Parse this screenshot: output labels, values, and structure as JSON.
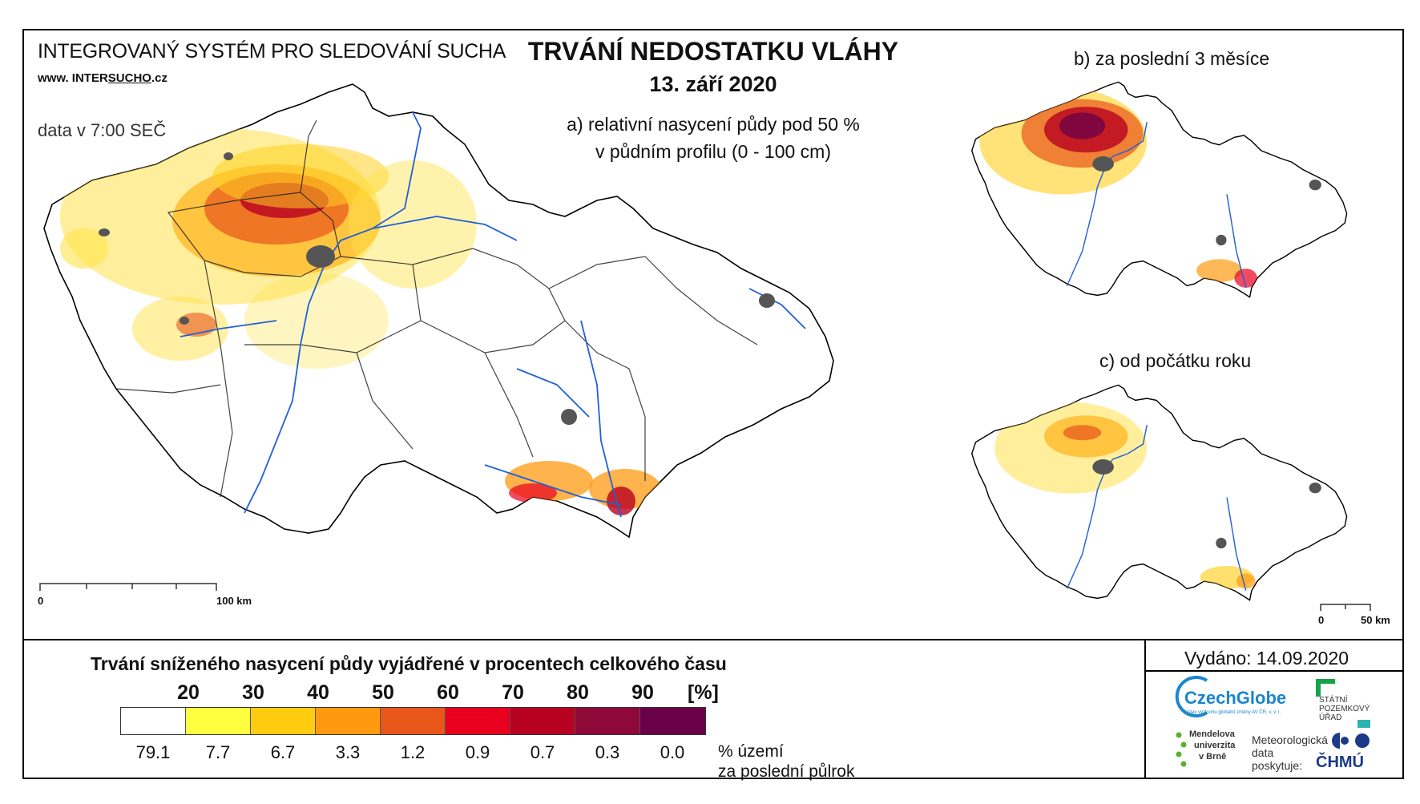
{
  "header": {
    "system_title": "INTEGROVANÝ SYSTÉM PRO SLEDOVÁNÍ SUCHA",
    "website_prefix": "www. INTER",
    "website_underlined": "SUCHO",
    "website_suffix": ".cz",
    "data_time": "data v 7:00 SEČ",
    "main_title": "TRVÁNÍ NEDOSTATKU VLÁHY",
    "date": "13. září 2020"
  },
  "panels": {
    "a_line1": "a) relativní nasycení půdy pod 50 %",
    "a_line2": "v půdním profilu (0 - 100 cm)",
    "b": "b) za poslední 3 měsíce",
    "c": "c) od počátku roku"
  },
  "scale": {
    "main_zero": "0",
    "main_label": "100 km",
    "small_zero": "0",
    "small_label": "50 km"
  },
  "legend": {
    "title": "Trvání sníženého nasycení půdy vyjádřené v procentech celkového času",
    "thresholds": [
      "20",
      "30",
      "40",
      "50",
      "60",
      "70",
      "80",
      "90"
    ],
    "unit": "[%]",
    "colors": [
      "#ffffff",
      "#ffff40",
      "#ffcc10",
      "#ff9a10",
      "#e8561a",
      "#e8001e",
      "#b80020",
      "#8e0838",
      "#6a0048"
    ],
    "percentages": [
      "79.1",
      "7.7",
      "6.7",
      "3.3",
      "1.2",
      "0.9",
      "0.7",
      "0.3",
      "0.0"
    ],
    "pct_label_line1": "% území",
    "pct_label_line2": "za poslední půlrok"
  },
  "footer": {
    "issued": "Vydáno: 14.09.2020",
    "czechglobe": "CzechGlobe",
    "czechglobe_sub": "Ústav výzkumu globální změny AV ČR, v. v. i.",
    "spu_line1": "STÁTNÍ",
    "spu_line2": "POZEMKOVÝ",
    "spu_line3": "ÚŘAD",
    "mendel_line1": "Mendelova",
    "mendel_line2": "univerzita",
    "mendel_line3": "v Brně",
    "meteo_line1": "Meteorologická",
    "meteo_line2": "data",
    "meteo_line3": "poskytuje:",
    "chmu": "ČHMÚ"
  }
}
